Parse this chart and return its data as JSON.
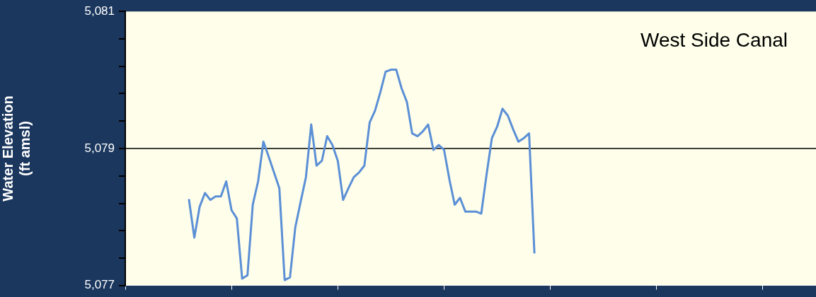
{
  "chart_data": {
    "type": "line",
    "title": "West Side Canal",
    "ylabel": "Water Elevation\n(ft amsl)",
    "categories": [
      null,
      null,
      null,
      null,
      null,
      null,
      null,
      null,
      null,
      null,
      null,
      null,
      null,
      null,
      null,
      null,
      null,
      null,
      null,
      null,
      null,
      null,
      null,
      null,
      null,
      null,
      null,
      null,
      null,
      null,
      null,
      null,
      null,
      null,
      null,
      null,
      null,
      null,
      null,
      null,
      null,
      null,
      null,
      null,
      null,
      null,
      null,
      null,
      null,
      null,
      null,
      null,
      null,
      null,
      null,
      null,
      null,
      null,
      null,
      null,
      null,
      null,
      null,
      null,
      null,
      null,
      null,
      null,
      null,
      null,
      null,
      null,
      null,
      null,
      null,
      null,
      null,
      null,
      null,
      null,
      null,
      null,
      null,
      null,
      null,
      null,
      null,
      null,
      null,
      null,
      null,
      null,
      null,
      null,
      null,
      null,
      null,
      null,
      null,
      null,
      null,
      null,
      null,
      null,
      null,
      null,
      null,
      null,
      null,
      null,
      null,
      null,
      null,
      null,
      null,
      null,
      null,
      null,
      null,
      null,
      null,
      null,
      null,
      null,
      null,
      null,
      null,
      null,
      null,
      null,
      null
    ],
    "series": [
      {
        "color": "#5b8fd6",
        "values": [
          null,
          null,
          null,
          null,
          null,
          null,
          null,
          null,
          null,
          null,
          null,
          null,
          5078.25,
          5077.7,
          5078.15,
          5078.35,
          5078.25,
          5078.3,
          5078.3,
          5078.52,
          5078.1,
          5077.98,
          5077.1,
          5077.15,
          5078.18,
          5078.52,
          5079.1,
          5078.88,
          5078.65,
          5078.42,
          5077.08,
          5077.12,
          5077.85,
          5078.22,
          5078.58,
          5079.35,
          5078.75,
          5078.82,
          5079.18,
          5079.05,
          5078.82,
          5078.25,
          5078.42,
          5078.58,
          5078.65,
          5078.75,
          5079.38,
          5079.55,
          5079.82,
          5080.12,
          5080.15,
          5080.15,
          5079.88,
          5079.68,
          5079.22,
          5079.18,
          5079.25,
          5079.35,
          5078.98,
          5079.05,
          5078.98,
          5078.55,
          5078.18,
          5078.28,
          5078.08,
          5078.08,
          5078.08,
          5078.05,
          5078.62,
          5079.15,
          5079.32,
          5079.58,
          5079.48,
          5079.28,
          5079.1,
          5079.15,
          5079.22,
          5077.48,
          null,
          null,
          null,
          null,
          null,
          null,
          null,
          null,
          null,
          null,
          null,
          null,
          null,
          null,
          null,
          null,
          null,
          null,
          null,
          null,
          null,
          null,
          null,
          null,
          null,
          null,
          null,
          null,
          null,
          null,
          null,
          null,
          null,
          null,
          null,
          null,
          null,
          null,
          null,
          null,
          null,
          null,
          null,
          null,
          null,
          null,
          null,
          null,
          null,
          null,
          null,
          null,
          null
        ]
      }
    ],
    "ylim": [
      5077,
      5081
    ],
    "yticks": [
      {
        "value": 5077,
        "label": "5,077"
      },
      {
        "value": 5077.4,
        "label": null
      },
      {
        "value": 5077.8,
        "label": null
      },
      {
        "value": 5078.2,
        "label": null
      },
      {
        "value": 5078.6,
        "label": null
      },
      {
        "value": 5079,
        "label": "5,079"
      },
      {
        "value": 5079.4,
        "label": null
      },
      {
        "value": 5079.8,
        "label": null
      },
      {
        "value": 5080.2,
        "label": null
      },
      {
        "value": 5080.6,
        "label": null
      },
      {
        "value": 5081,
        "label": "5,081"
      }
    ],
    "ref_lines": [
      {
        "axis": "y",
        "value": 5079,
        "color": "#000000"
      }
    ],
    "tick_labels": "y",
    "grid": false,
    "legend": false,
    "marker": "none",
    "line_style": "solid"
  }
}
